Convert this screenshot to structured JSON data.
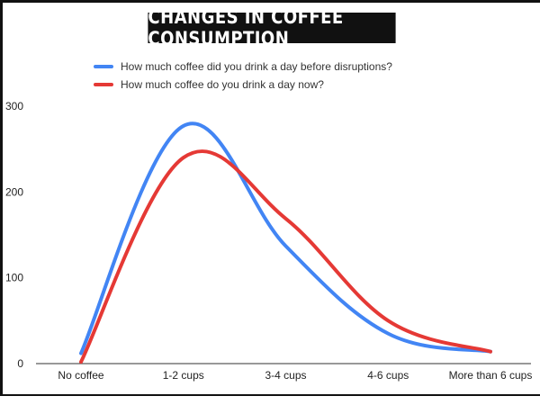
{
  "chart_data": {
    "type": "line",
    "title": "CHANGES IN COFFEE CONSUMPTION",
    "categories": [
      "No coffee",
      "1-2 cups",
      "3-4 cups",
      "4-6 cups",
      "More than 6 cups"
    ],
    "series": [
      {
        "name": "How much coffee did you drink a day before disruptions?",
        "color": "#4285f4",
        "values": [
          12,
          277,
          137,
          35,
          14
        ]
      },
      {
        "name": "How much coffee do you drink a day now?",
        "color": "#e53935",
        "values": [
          2,
          240,
          169,
          50,
          14
        ]
      }
    ],
    "yticks": [
      0,
      100,
      200,
      300
    ],
    "ylim": [
      0,
      300
    ],
    "grid": false,
    "smooth": true,
    "legend_position": "top"
  }
}
